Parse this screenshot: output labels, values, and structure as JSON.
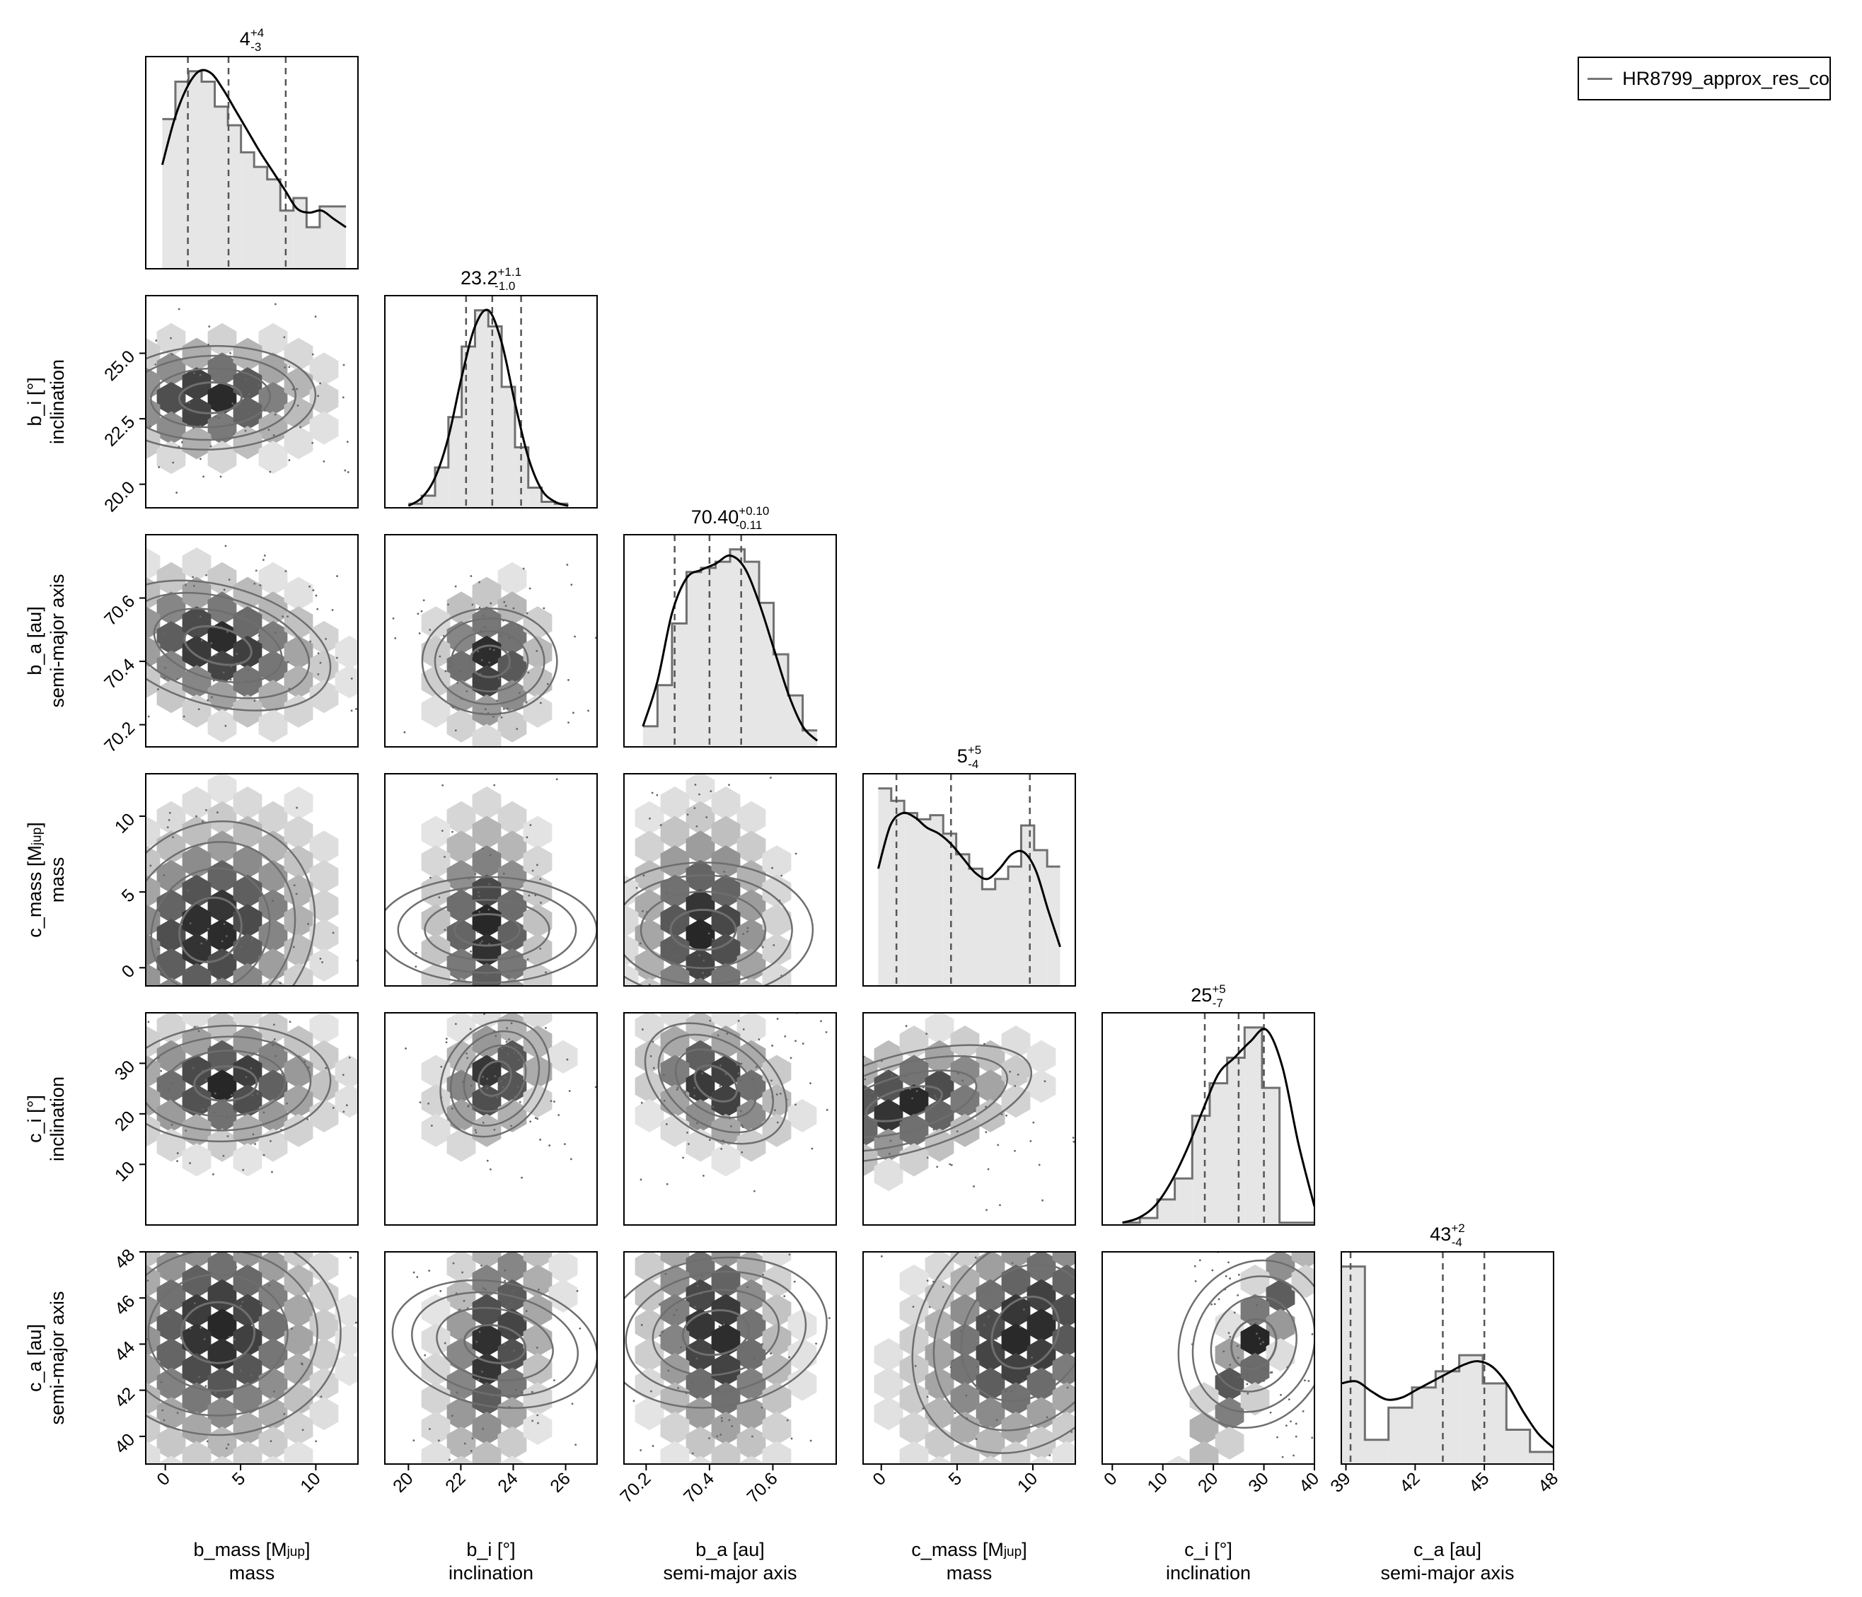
{
  "legend": {
    "label": "HR8799_approx_res_co",
    "color": "#777777"
  },
  "colors": {
    "hist_fill": "#e6e6e6",
    "hist_step": "#707070",
    "kde": "#000000",
    "contour": "#6e6e6e",
    "frame": "#000000",
    "hexbin_dark": "#262626",
    "hexbin_light": "#f2f2f2"
  },
  "chart_data": {
    "type": "corner",
    "grid": false,
    "legend_position": "top-right",
    "parameters": [
      {
        "name": "b_mass [Mjup]",
        "name_base": "b_mass [M",
        "name_sub": "jup",
        "name_tail": "]",
        "description": "mass",
        "range": [
          -1.3,
          12.8
        ],
        "ticks": [
          0,
          5,
          10
        ],
        "tick_labels": [
          "0",
          "5",
          "10"
        ],
        "summary": {
          "median": "4",
          "plus": "+4",
          "minus": "-3"
        },
        "quantiles": [
          1.5,
          4.2,
          8.0
        ],
        "samples_range": [
          -0.2,
          12.0
        ],
        "hist": [
          7.2,
          9.0,
          9.5,
          9.0,
          7.8,
          6.9,
          5.6,
          4.9,
          4.3,
          2.8,
          3.4,
          2.0,
          3.0,
          3.0
        ],
        "kde": [
          5.0,
          7.2,
          8.7,
          9.5,
          9.4,
          8.6,
          7.6,
          6.6,
          5.6,
          4.7,
          3.8,
          2.9,
          2.7,
          2.8,
          2.4,
          2.0
        ],
        "dist": {
          "mu": 3.4,
          "sd": 3.2
        }
      },
      {
        "name": "b_i [°]",
        "description": "inclination",
        "range": [
          19.1,
          27.2
        ],
        "ticks": [
          20,
          22,
          24,
          26
        ],
        "tick_labels": [
          "20",
          "22",
          "24",
          "26"
        ],
        "ticks_y": [
          20.0,
          22.5,
          25.0
        ],
        "tick_labels_y": [
          "20.0",
          "22.5",
          "25.0"
        ],
        "summary": {
          "median": "23.2",
          "plus": "+1.1",
          "minus": "-1.0"
        },
        "quantiles": [
          22.2,
          23.2,
          24.3
        ],
        "samples_range": [
          20.0,
          26.1
        ],
        "hist": [
          0.2,
          0.6,
          2.0,
          4.5,
          8.0,
          9.8,
          9.0,
          6.0,
          3.0,
          1.0,
          0.3,
          0.2
        ],
        "kde": [
          0.1,
          0.5,
          1.5,
          3.5,
          6.5,
          9.0,
          9.8,
          8.2,
          5.2,
          2.5,
          0.9,
          0.3,
          0.1
        ],
        "dist": {
          "mu": 23.1,
          "sd": 0.95
        }
      },
      {
        "name": "b_a [au]",
        "description": "semi-major axis",
        "range": [
          70.13,
          70.8
        ],
        "ticks": [
          70.2,
          70.4,
          70.6
        ],
        "tick_labels": [
          "70.2",
          "70.4",
          "70.6"
        ],
        "summary": {
          "median": "70.40",
          "plus": "+0.10",
          "minus": "-0.11"
        },
        "quantiles": [
          70.29,
          70.4,
          70.5
        ],
        "samples_range": [
          70.19,
          70.74
        ],
        "hist": [
          1.0,
          3.0,
          6.0,
          8.5,
          8.7,
          9.0,
          9.6,
          9.0,
          7.0,
          4.5,
          2.5,
          0.8
        ],
        "kde": [
          1.0,
          3.2,
          6.5,
          8.2,
          8.6,
          8.9,
          9.3,
          8.7,
          7.0,
          4.8,
          2.6,
          1.0,
          0.3
        ],
        "dist": {
          "mu": 70.41,
          "sd": 0.1
        }
      },
      {
        "name": "c_mass [Mjup]",
        "name_base": "c_mass [M",
        "name_sub": "jup",
        "name_tail": "]",
        "description": "mass",
        "range": [
          -1.2,
          12.8
        ],
        "ticks": [
          0,
          5,
          10
        ],
        "tick_labels": [
          "0",
          "5",
          "10"
        ],
        "summary": {
          "median": "5",
          "plus": "+5",
          "minus": "-4"
        },
        "quantiles": [
          1.0,
          4.6,
          9.8
        ],
        "samples_range": [
          -0.2,
          11.8
        ],
        "hist": [
          9.6,
          9.0,
          8.4,
          8.1,
          8.3,
          7.4,
          6.4,
          5.7,
          4.7,
          5.2,
          5.8,
          7.8,
          6.6,
          5.8
        ],
        "kde": [
          5.7,
          7.8,
          8.4,
          8.2,
          7.7,
          7.4,
          6.9,
          6.2,
          5.5,
          5.2,
          5.7,
          6.4,
          6.5,
          5.6,
          3.7,
          1.9
        ],
        "dist": {
          "mu": 5.0,
          "sd": 3.4
        }
      },
      {
        "name": "c_i [°]",
        "description": "inclination",
        "range": [
          -2.0,
          40.0
        ],
        "ticks": [
          0,
          10,
          20,
          30,
          40
        ],
        "tick_labels": [
          "0",
          "10",
          "20",
          "30",
          "40"
        ],
        "ticks_y": [
          10,
          20,
          30
        ],
        "tick_labels_y": [
          "10",
          "20",
          "30"
        ],
        "summary": {
          "median": "25",
          "plus": "+5",
          "minus": "-7"
        },
        "quantiles": [
          18.3,
          25.0,
          30.0
        ],
        "samples_range": [
          2.0,
          40.0
        ],
        "hist": [
          0.1,
          0.3,
          1.1,
          2.0,
          4.7,
          6.1,
          7.2,
          8.5,
          5.9,
          0.1,
          0.1
        ],
        "kde": [
          0.1,
          0.3,
          0.8,
          1.8,
          3.2,
          4.9,
          6.5,
          7.2,
          7.9,
          8.4,
          6.8,
          3.5,
          0.8
        ],
        "dist": {
          "mu": 25.0,
          "sd": 5.5
        }
      },
      {
        "name": "c_a [au]",
        "description": "semi-major axis",
        "range": [
          38.8,
          48.0
        ],
        "ticks": [
          39,
          42,
          45,
          48
        ],
        "tick_labels": [
          "39",
          "42",
          "45",
          "48"
        ],
        "ticks_y": [
          40,
          42,
          44,
          46,
          48
        ],
        "tick_labels_y": [
          "40",
          "42",
          "44",
          "46",
          "48"
        ],
        "summary": {
          "median": "43",
          "plus": "+2",
          "minus": "-4"
        },
        "quantiles": [
          39.2,
          43.2,
          45.0
        ],
        "samples_range": [
          38.8,
          48.0
        ],
        "hist": [
          9.8,
          1.2,
          2.8,
          3.8,
          4.6,
          5.4,
          4.0,
          1.7,
          0.6
        ],
        "kde": [
          4.0,
          4.1,
          3.6,
          3.2,
          3.3,
          3.7,
          4.1,
          4.5,
          4.9,
          5.1,
          4.8,
          3.9,
          2.6,
          1.5,
          0.8
        ],
        "dist": {
          "mu": 43.5,
          "sd": 2.5
        }
      }
    ],
    "pairs": [
      {
        "row": 1,
        "col": 0,
        "mode": [
          3.0,
          23.3
        ],
        "corr": 0.05
      },
      {
        "row": 2,
        "col": 0,
        "mode": [
          3.5,
          70.45
        ],
        "corr": -0.25
      },
      {
        "row": 2,
        "col": 1,
        "mode": [
          23.1,
          70.4
        ],
        "corr": 0.0
      },
      {
        "row": 3,
        "col": 0,
        "mode": [
          3.0,
          2.5
        ],
        "corr": 0.2
      },
      {
        "row": 3,
        "col": 1,
        "mode": [
          23.0,
          2.5
        ],
        "corr": 0.0
      },
      {
        "row": 3,
        "col": 2,
        "mode": [
          70.38,
          2.5
        ],
        "corr": 0.0
      },
      {
        "row": 4,
        "col": 0,
        "mode": [
          4.0,
          26.0
        ],
        "corr": 0.05
      },
      {
        "row": 4,
        "col": 1,
        "mode": [
          23.3,
          27.0
        ],
        "corr": 0.35
      },
      {
        "row": 4,
        "col": 2,
        "mode": [
          70.42,
          26.0
        ],
        "corr": -0.3
      },
      {
        "row": 4,
        "col": 3,
        "mode": [
          1.5,
          22.0
        ],
        "corr": 0.4
      },
      {
        "row": 5,
        "col": 0,
        "mode": [
          3.5,
          44.5
        ],
        "corr": 0.0
      },
      {
        "row": 5,
        "col": 1,
        "mode": [
          23.3,
          44.0
        ],
        "corr": 0.35
      },
      {
        "row": 5,
        "col": 2,
        "mode": [
          70.42,
          44.5
        ],
        "corr": -0.2
      },
      {
        "row": 5,
        "col": 3,
        "mode": [
          9.5,
          44.5
        ],
        "corr": 0.35
      },
      {
        "row": 5,
        "col": 4,
        "mode": [
          28.0,
          44.0
        ],
        "corr": 0.9
      }
    ]
  }
}
